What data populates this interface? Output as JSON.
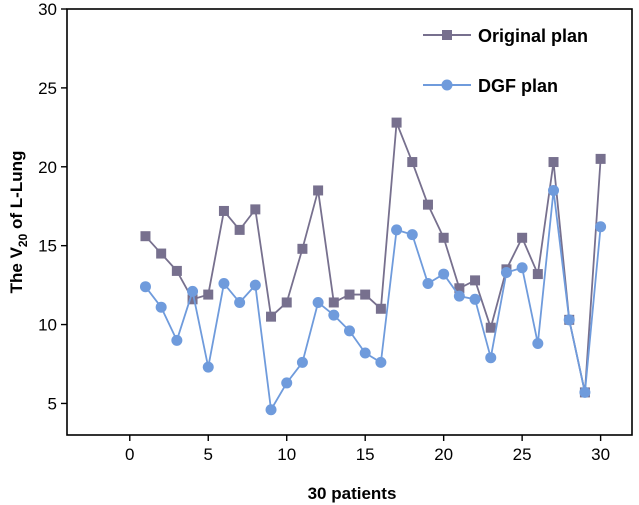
{
  "chart_data": {
    "type": "line",
    "title": "",
    "xlabel": "30 patients",
    "ylabel_prefix": "The V",
    "ylabel_subscript": "20",
    "ylabel_suffix": " of L-Lung",
    "xlim": [
      -4,
      32
    ],
    "ylim": [
      3,
      30
    ],
    "xticks": [
      0,
      5,
      10,
      15,
      20,
      25,
      30
    ],
    "yticks": [
      5,
      10,
      15,
      20,
      25,
      30
    ],
    "legend_position": "top-right",
    "series": [
      {
        "name": "Original plan",
        "color": "#77708e",
        "marker": "square",
        "x": [
          1,
          2,
          3,
          4,
          5,
          6,
          7,
          8,
          9,
          10,
          11,
          12,
          13,
          14,
          15,
          16,
          17,
          18,
          19,
          20,
          21,
          22,
          23,
          24,
          25,
          26,
          27,
          28,
          29,
          30
        ],
        "values": [
          15.6,
          14.5,
          13.4,
          11.6,
          11.9,
          17.2,
          16.0,
          17.3,
          10.5,
          11.4,
          14.8,
          18.5,
          11.4,
          11.9,
          11.9,
          11.0,
          22.8,
          20.3,
          17.6,
          15.5,
          12.3,
          12.8,
          9.8,
          13.5,
          15.5,
          13.2,
          20.3,
          10.3,
          5.7,
          20.5
        ]
      },
      {
        "name": "DGF plan",
        "color": "#6f9bdc",
        "marker": "circle",
        "x": [
          1,
          2,
          3,
          4,
          5,
          6,
          7,
          8,
          9,
          10,
          11,
          12,
          13,
          14,
          15,
          16,
          17,
          18,
          19,
          20,
          21,
          22,
          23,
          24,
          25,
          26,
          27,
          28,
          29,
          30
        ],
        "values": [
          12.4,
          11.1,
          9.0,
          12.1,
          7.3,
          12.6,
          11.4,
          12.5,
          4.6,
          6.3,
          7.6,
          11.4,
          10.6,
          9.6,
          8.2,
          7.6,
          16.0,
          15.7,
          12.6,
          13.2,
          11.8,
          11.6,
          7.9,
          13.3,
          13.6,
          8.8,
          18.5,
          10.3,
          5.7,
          16.2
        ]
      }
    ]
  }
}
